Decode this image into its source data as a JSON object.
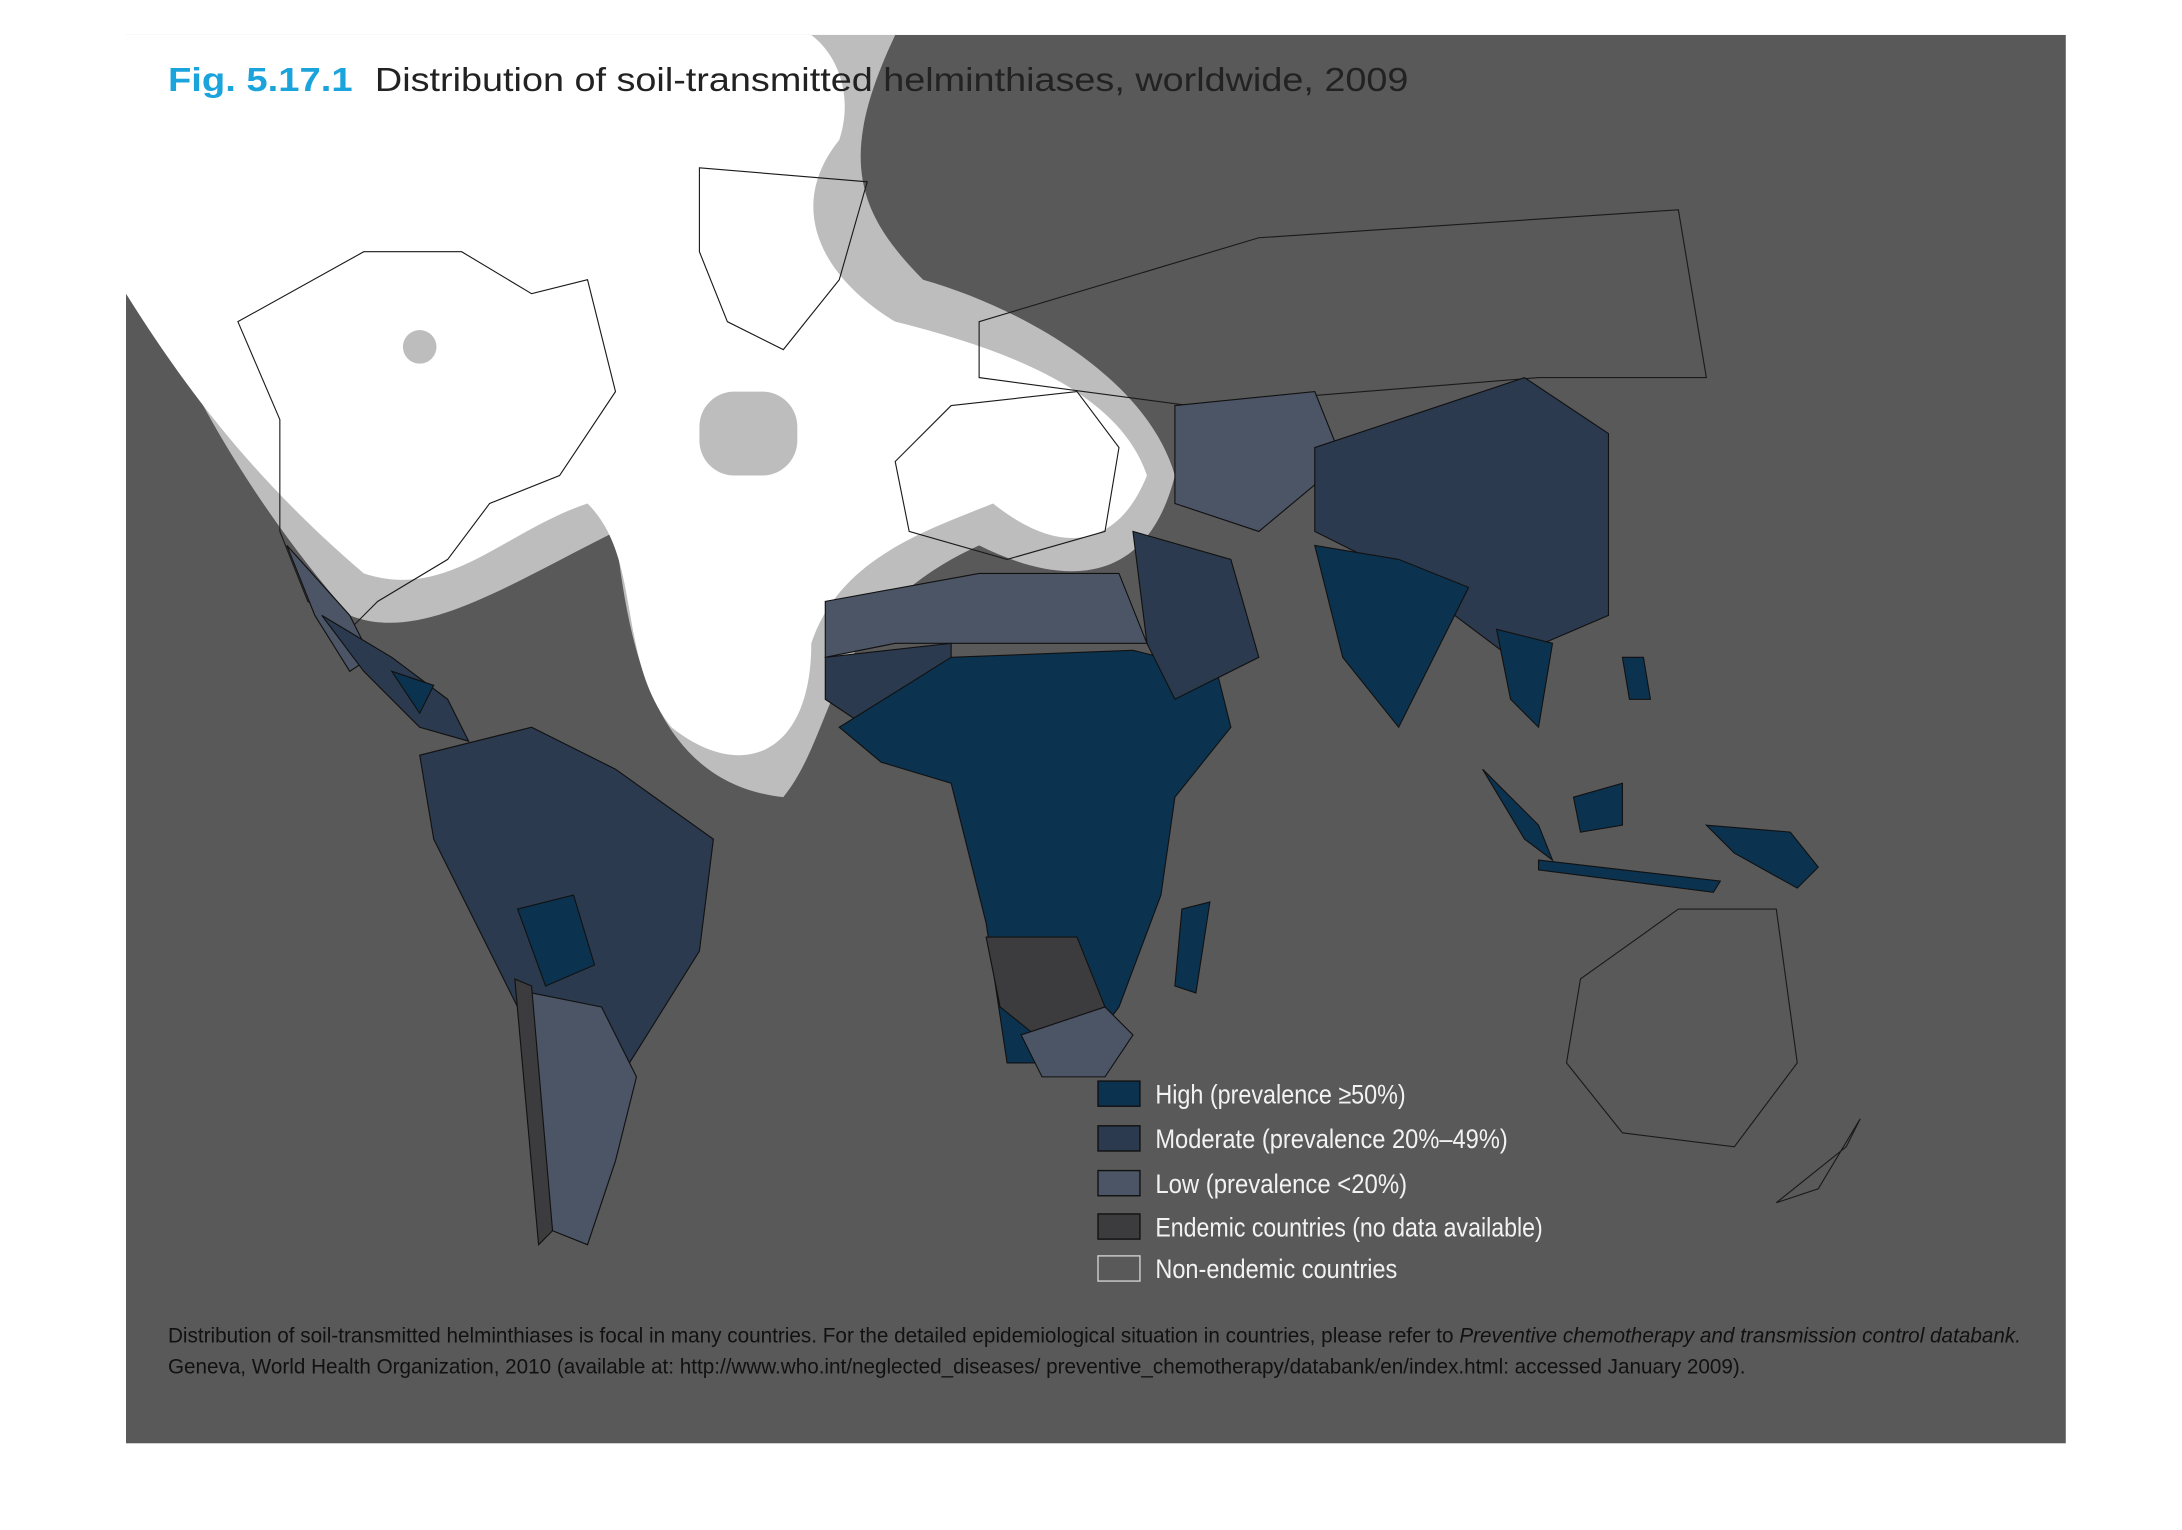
{
  "figure": {
    "number": "Fig. 5.17.1",
    "title": "Distribution of soil-transmitted helminthiases, worldwide, 2009"
  },
  "legend": [
    {
      "label": "High (prevalence ≥50%)",
      "color": "#0b3350"
    },
    {
      "label": "Moderate (prevalence 20%–49%)",
      "color": "#2b3a4e"
    },
    {
      "label": "Low (prevalence <20%)",
      "color": "#4b5566"
    },
    {
      "label": "Endemic countries (no data available)",
      "color": "#3c3c3e"
    },
    {
      "label": "Non-endemic countries",
      "color": "#595959"
    }
  ],
  "footnote": {
    "line1_text": "Distribution of soil-transmitted helminthiases is focal in many countries. For the detailed epidemiological situation in countries, please refer to ",
    "line1_italic": "Preventive chemotherapy and transmission control databank.",
    "line2_text": "Geneva, World Health Organization, 2010 (available at: http://www.who.int/neglected_diseases/ preventive_chemotherapy/databank/en/index.html: accessed January 2009)."
  }
}
